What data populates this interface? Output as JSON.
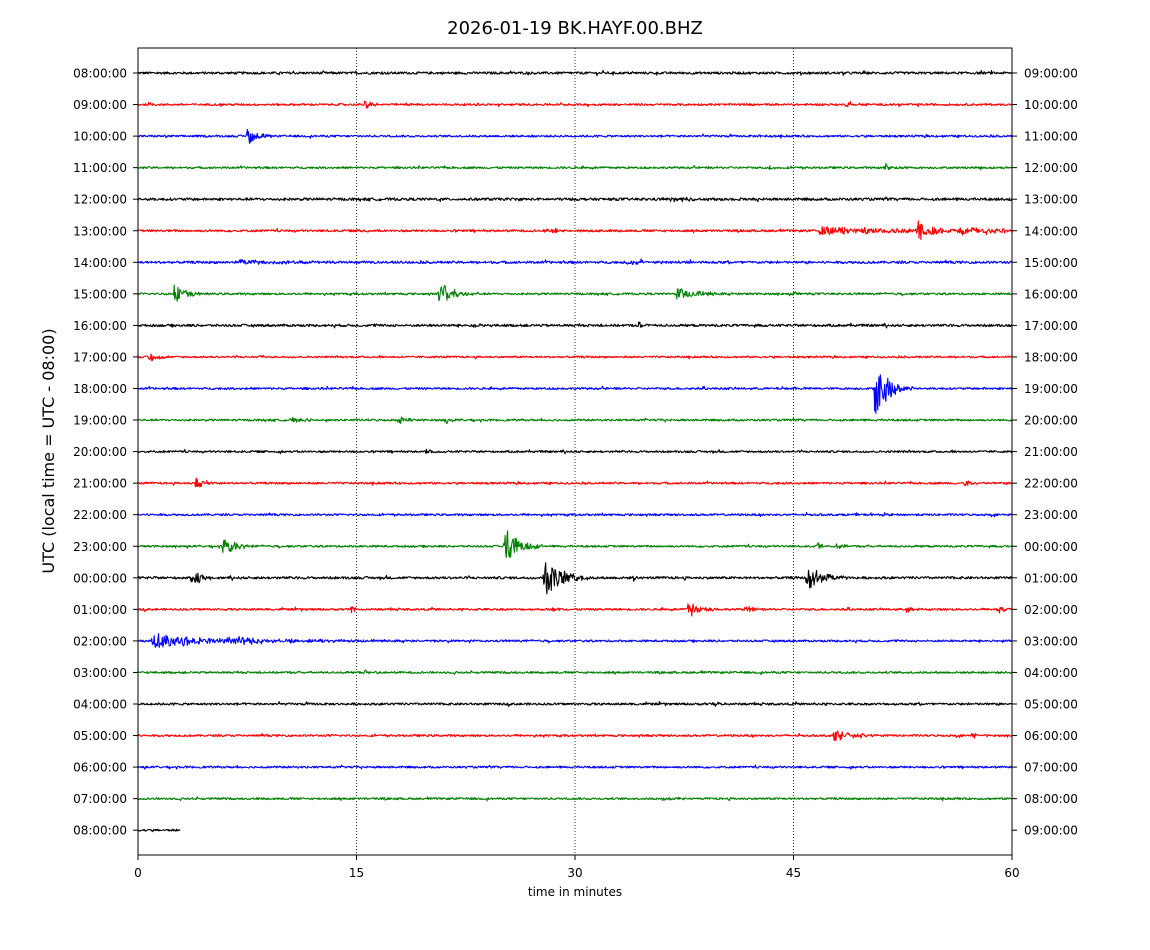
{
  "chart_data": {
    "type": "line",
    "title": "2026-01-19 BK.HAYF.00.BHZ",
    "xlabel": "time in minutes",
    "ylabel": "UTC (local time = UTC - 08:00)",
    "xlim": [
      0,
      60
    ],
    "x_ticks": [
      "0",
      "15",
      "30",
      "45",
      "60"
    ],
    "x_gridlines": [
      15,
      30,
      45
    ],
    "grid_style": "dotted vertical",
    "left_ticks": [
      "08:00:00",
      "09:00:00",
      "10:00:00",
      "11:00:00",
      "12:00:00",
      "13:00:00",
      "14:00:00",
      "15:00:00",
      "16:00:00",
      "17:00:00",
      "18:00:00",
      "19:00:00",
      "20:00:00",
      "21:00:00",
      "22:00:00",
      "23:00:00",
      "00:00:00",
      "01:00:00",
      "02:00:00",
      "03:00:00",
      "04:00:00",
      "05:00:00",
      "06:00:00",
      "07:00:00",
      "08:00:00"
    ],
    "right_ticks": [
      "09:00:00",
      "10:00:00",
      "11:00:00",
      "12:00:00",
      "13:00:00",
      "14:00:00",
      "15:00:00",
      "16:00:00",
      "17:00:00",
      "18:00:00",
      "19:00:00",
      "20:00:00",
      "21:00:00",
      "22:00:00",
      "23:00:00",
      "00:00:00",
      "01:00:00",
      "02:00:00",
      "03:00:00",
      "04:00:00",
      "05:00:00",
      "06:00:00",
      "07:00:00",
      "08:00:00",
      "09:00:00"
    ],
    "trace_colors": [
      "#000000",
      "#ff0000",
      "#0000ff",
      "#008000"
    ],
    "traces": [
      {
        "noise": 1.2,
        "end_minute": 60,
        "events": []
      },
      {
        "noise": 1.0,
        "end_minute": 60,
        "events": [
          {
            "t": 15.6,
            "amp": 5,
            "dur": 0.4
          },
          {
            "t": 48.6,
            "amp": 5,
            "dur": 0.5
          },
          {
            "t": 42.1,
            "amp": 2,
            "dur": 0.3
          }
        ]
      },
      {
        "noise": 1.0,
        "end_minute": 60,
        "events": [
          {
            "t": 7.5,
            "amp": 10,
            "dur": 0.6
          },
          {
            "t": 42.6,
            "amp": 2,
            "dur": 0.3
          }
        ]
      },
      {
        "noise": 1.0,
        "end_minute": 60,
        "events": [
          {
            "t": 51.3,
            "amp": 4,
            "dur": 0.4
          },
          {
            "t": 43.3,
            "amp": 2,
            "dur": 0.3
          }
        ]
      },
      {
        "noise": 1.3,
        "end_minute": 60,
        "events": [
          {
            "t": 36.5,
            "amp": 2,
            "dur": 2
          }
        ]
      },
      {
        "noise": 1.1,
        "end_minute": 60,
        "events": [
          {
            "t": 15.3,
            "amp": 2,
            "dur": 0.4
          },
          {
            "t": 27.8,
            "amp": 2,
            "dur": 1.5
          },
          {
            "t": 46.8,
            "amp": 4,
            "dur": 6
          },
          {
            "t": 53.6,
            "amp": 14,
            "dur": 0.8
          },
          {
            "t": 56.3,
            "amp": 4,
            "dur": 4
          }
        ]
      },
      {
        "noise": 1.2,
        "end_minute": 60,
        "events": [
          {
            "t": 7.0,
            "amp": 2,
            "dur": 4
          },
          {
            "t": 33.5,
            "amp": 2,
            "dur": 2
          }
        ]
      },
      {
        "noise": 1.0,
        "end_minute": 60,
        "events": [
          {
            "t": 2.5,
            "amp": 9,
            "dur": 0.8
          },
          {
            "t": 20.7,
            "amp": 12,
            "dur": 0.9
          },
          {
            "t": 37.0,
            "amp": 6,
            "dur": 1.5
          },
          {
            "t": 45.0,
            "amp": 2,
            "dur": 0.3
          }
        ]
      },
      {
        "noise": 1.2,
        "end_minute": 60,
        "events": [
          {
            "t": 34.4,
            "amp": 4,
            "dur": 0.3
          },
          {
            "t": 23.0,
            "amp": 2,
            "dur": 0.5
          }
        ]
      },
      {
        "noise": 0.9,
        "end_minute": 60,
        "events": [
          {
            "t": 0.8,
            "amp": 6,
            "dur": 0.5
          },
          {
            "t": 8.4,
            "amp": 2,
            "dur": 0.3
          }
        ]
      },
      {
        "noise": 1.0,
        "end_minute": 60,
        "events": [
          {
            "t": 50.6,
            "amp": 28,
            "dur": 0.9
          }
        ]
      },
      {
        "noise": 1.0,
        "end_minute": 60,
        "events": [
          {
            "t": 18.0,
            "amp": 4,
            "dur": 0.5
          },
          {
            "t": 21.2,
            "amp": 4,
            "dur": 0.3
          },
          {
            "t": 10.5,
            "amp": 2,
            "dur": 1
          }
        ]
      },
      {
        "noise": 1.0,
        "end_minute": 60,
        "events": [
          {
            "t": 19.8,
            "amp": 4,
            "dur": 0.3
          }
        ]
      },
      {
        "noise": 1.0,
        "end_minute": 60,
        "events": [
          {
            "t": 4.0,
            "amp": 6,
            "dur": 0.6
          },
          {
            "t": 56.8,
            "amp": 4,
            "dur": 0.3
          }
        ]
      },
      {
        "noise": 1.0,
        "end_minute": 60,
        "events": []
      },
      {
        "noise": 1.0,
        "end_minute": 60,
        "events": [
          {
            "t": 5.8,
            "amp": 8,
            "dur": 0.6
          },
          {
            "t": 6.3,
            "amp": 7,
            "dur": 0.6
          },
          {
            "t": 25.2,
            "amp": 18,
            "dur": 0.9
          },
          {
            "t": 46.7,
            "amp": 4,
            "dur": 0.3
          },
          {
            "t": 48.0,
            "amp": 5,
            "dur": 0.3
          }
        ]
      },
      {
        "noise": 1.2,
        "end_minute": 60,
        "events": [
          {
            "t": 3.7,
            "amp": 10,
            "dur": 0.6
          },
          {
            "t": 27.9,
            "amp": 24,
            "dur": 1.0
          },
          {
            "t": 34.0,
            "amp": 3,
            "dur": 0.3
          },
          {
            "t": 45.9,
            "amp": 13,
            "dur": 1.0
          }
        ]
      },
      {
        "noise": 1.0,
        "end_minute": 60,
        "events": [
          {
            "t": 14.6,
            "amp": 5,
            "dur": 0.3
          },
          {
            "t": 28.5,
            "amp": 3,
            "dur": 0.3
          },
          {
            "t": 37.8,
            "amp": 10,
            "dur": 0.7
          },
          {
            "t": 41.7,
            "amp": 4,
            "dur": 0.4
          },
          {
            "t": 52.8,
            "amp": 4,
            "dur": 0.4
          },
          {
            "t": 59.0,
            "amp": 3,
            "dur": 0.6
          }
        ]
      },
      {
        "noise": 1.0,
        "end_minute": 60,
        "events": [
          {
            "t": 1.0,
            "amp": 8,
            "dur": 3.5
          },
          {
            "t": 6.0,
            "amp": 3,
            "dur": 6
          }
        ]
      },
      {
        "noise": 1.0,
        "end_minute": 60,
        "events": [
          {
            "t": 15.6,
            "amp": 2,
            "dur": 0.4
          }
        ]
      },
      {
        "noise": 1.1,
        "end_minute": 60,
        "events": [
          {
            "t": 39.5,
            "amp": 2,
            "dur": 0.3
          }
        ]
      },
      {
        "noise": 1.0,
        "end_minute": 60,
        "events": [
          {
            "t": 47.8,
            "amp": 5,
            "dur": 1.2
          },
          {
            "t": 57.2,
            "amp": 5,
            "dur": 0.3
          }
        ]
      },
      {
        "noise": 1.0,
        "end_minute": 60,
        "events": []
      },
      {
        "noise": 1.0,
        "end_minute": 60,
        "events": [
          {
            "t": 36.0,
            "amp": 2,
            "dur": 1
          }
        ]
      },
      {
        "noise": 1.0,
        "end_minute": 2.9,
        "events": []
      }
    ]
  }
}
